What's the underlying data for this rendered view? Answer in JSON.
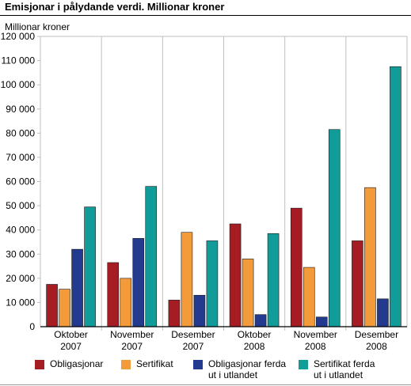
{
  "chart_data": {
    "type": "bar",
    "title": "Emisjonar i pålydande verdi. Millionar kroner",
    "ylabel": "Millionar kroner",
    "xlabel": "",
    "ylim": [
      0,
      120000
    ],
    "yticks": [
      0,
      10000,
      20000,
      30000,
      40000,
      50000,
      60000,
      70000,
      80000,
      90000,
      100000,
      110000,
      120000
    ],
    "ytick_labels": [
      "0",
      "10 000",
      "20 000",
      "30 000",
      "40 000",
      "50 000",
      "60 000",
      "70 000",
      "80 000",
      "90 000",
      "100 000",
      "110 000",
      "120 000"
    ],
    "categories": [
      [
        "Oktober",
        "2007"
      ],
      [
        "November",
        "2007"
      ],
      [
        "Desember",
        "2007"
      ],
      [
        "Oktober",
        "2008"
      ],
      [
        "November",
        "2008"
      ],
      [
        "Desember",
        "2008"
      ]
    ],
    "grid": "vertical separators between categories",
    "legend_position": "bottom",
    "series": [
      {
        "name": "Obligasjonar",
        "color": "#a51d23",
        "values": [
          17500,
          26500,
          11000,
          42500,
          49000,
          35500
        ]
      },
      {
        "name": "Sertifikat",
        "color": "#f39a3a",
        "values": [
          15500,
          20000,
          39000,
          28000,
          24500,
          57500
        ]
      },
      {
        "name": "Obligasjonar ferda ut i utlandet",
        "color": "#233a8e",
        "values": [
          32000,
          36500,
          13000,
          5000,
          4000,
          11500
        ]
      },
      {
        "name": "Sertifikat ferda ut i utlandet",
        "color": "#119c9a",
        "values": [
          49500,
          58000,
          35500,
          38500,
          81500,
          107500
        ]
      }
    ]
  },
  "legend": [
    {
      "lines": [
        "Obligasjonar"
      ],
      "color": "#a51d23"
    },
    {
      "lines": [
        "Sertifikat"
      ],
      "color": "#f39a3a"
    },
    {
      "lines": [
        "Obligasjonar ferda",
        "ut i utlandet"
      ],
      "color": "#233a8e"
    },
    {
      "lines": [
        "Sertifikat ferda",
        "ut i utlandet"
      ],
      "color": "#119c9a"
    }
  ]
}
